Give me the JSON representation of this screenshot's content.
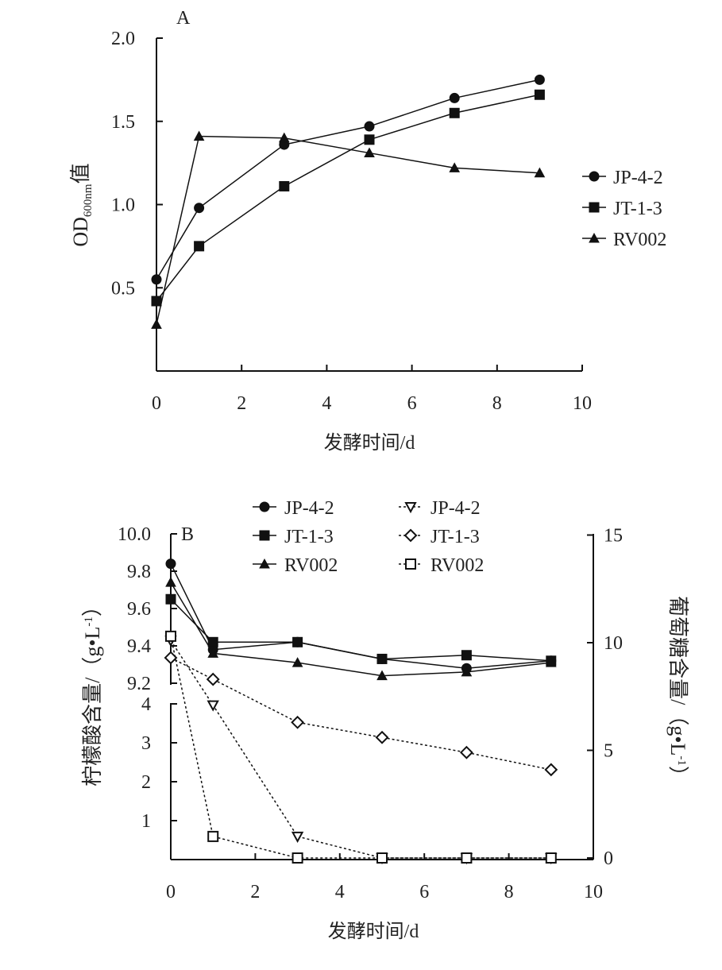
{
  "chart_data": [
    {
      "type": "line",
      "panel": "A",
      "xlabel": "发酵时间/d",
      "ylabel": "OD600nm值",
      "ylabel_main": "OD",
      "ylabel_sub": "600nm",
      "ylabel_tail": "值",
      "xlim": [
        0,
        10
      ],
      "ylim": [
        0,
        2.0
      ],
      "xticks": [
        0,
        2,
        4,
        6,
        8,
        10
      ],
      "yticks": [
        0.5,
        1.0,
        1.5,
        2.0
      ],
      "legend": "right",
      "x": [
        0,
        1,
        3,
        5,
        7,
        9
      ],
      "series": [
        {
          "name": "JP-4-2",
          "marker": "circle",
          "values": [
            0.55,
            0.98,
            1.36,
            1.47,
            1.64,
            1.75
          ]
        },
        {
          "name": "JT-1-3",
          "marker": "square",
          "values": [
            0.42,
            0.75,
            1.11,
            1.39,
            1.55,
            1.66
          ]
        },
        {
          "name": "RV002",
          "marker": "triangle",
          "values": [
            0.28,
            1.41,
            1.4,
            1.31,
            1.22,
            1.19
          ]
        }
      ]
    },
    {
      "type": "line",
      "panel": "B",
      "xlabel": "发酵时间/d",
      "ylabel_left": "柠檬酸含量/（g•L-1）",
      "ylabel_left_text": "柠檬酸含量/（g•L",
      "ylabel_right": "葡萄糖含量/（g•L-1）",
      "ylabel_right_text": "葡萄糖含量/（g•L",
      "unit_sup": "-1",
      "unit_close": "）",
      "xlim": [
        0,
        10
      ],
      "xticks": [
        0,
        2,
        4,
        6,
        8,
        10
      ],
      "yleft_upper_ticks": [
        "9.2",
        "9.4",
        "9.6",
        "9.8",
        "10.0"
      ],
      "yleft_upper_range": [
        9.2,
        10.0
      ],
      "yleft_lower_ticks": [
        "1",
        "2",
        "3",
        "4"
      ],
      "yleft_lower_range": [
        0,
        4.5
      ],
      "yright_ticks": [
        "0",
        "5",
        "10",
        "15"
      ],
      "yright_range": [
        0,
        15
      ],
      "x": [
        0,
        1,
        3,
        5,
        7,
        9
      ],
      "series": [
        {
          "name": "JP-4-2",
          "axis": "left",
          "marker": "circle",
          "style": "solid",
          "values": [
            9.84,
            9.38,
            9.42,
            9.33,
            9.28,
            9.32
          ]
        },
        {
          "name": "JT-1-3",
          "axis": "left",
          "marker": "square",
          "style": "solid",
          "values": [
            9.65,
            9.42,
            9.42,
            9.33,
            9.35,
            9.32
          ]
        },
        {
          "name": "RV002",
          "axis": "left",
          "marker": "triangle",
          "style": "solid",
          "values": [
            9.74,
            9.36,
            9.31,
            9.24,
            9.26,
            9.31
          ]
        },
        {
          "name": "JP-4-2",
          "axis": "right",
          "marker": "triangle-down-open",
          "style": "dotted",
          "values": [
            10.1,
            7.1,
            1.0,
            0,
            0,
            0
          ]
        },
        {
          "name": "JT-1-3",
          "axis": "right",
          "marker": "diamond-open",
          "style": "dotted",
          "values": [
            9.3,
            8.3,
            6.3,
            5.6,
            4.9,
            4.1
          ]
        },
        {
          "name": "RV002",
          "axis": "right",
          "marker": "square-open",
          "style": "dotted",
          "values": [
            10.3,
            1.0,
            0,
            0,
            0,
            0
          ]
        }
      ]
    }
  ]
}
